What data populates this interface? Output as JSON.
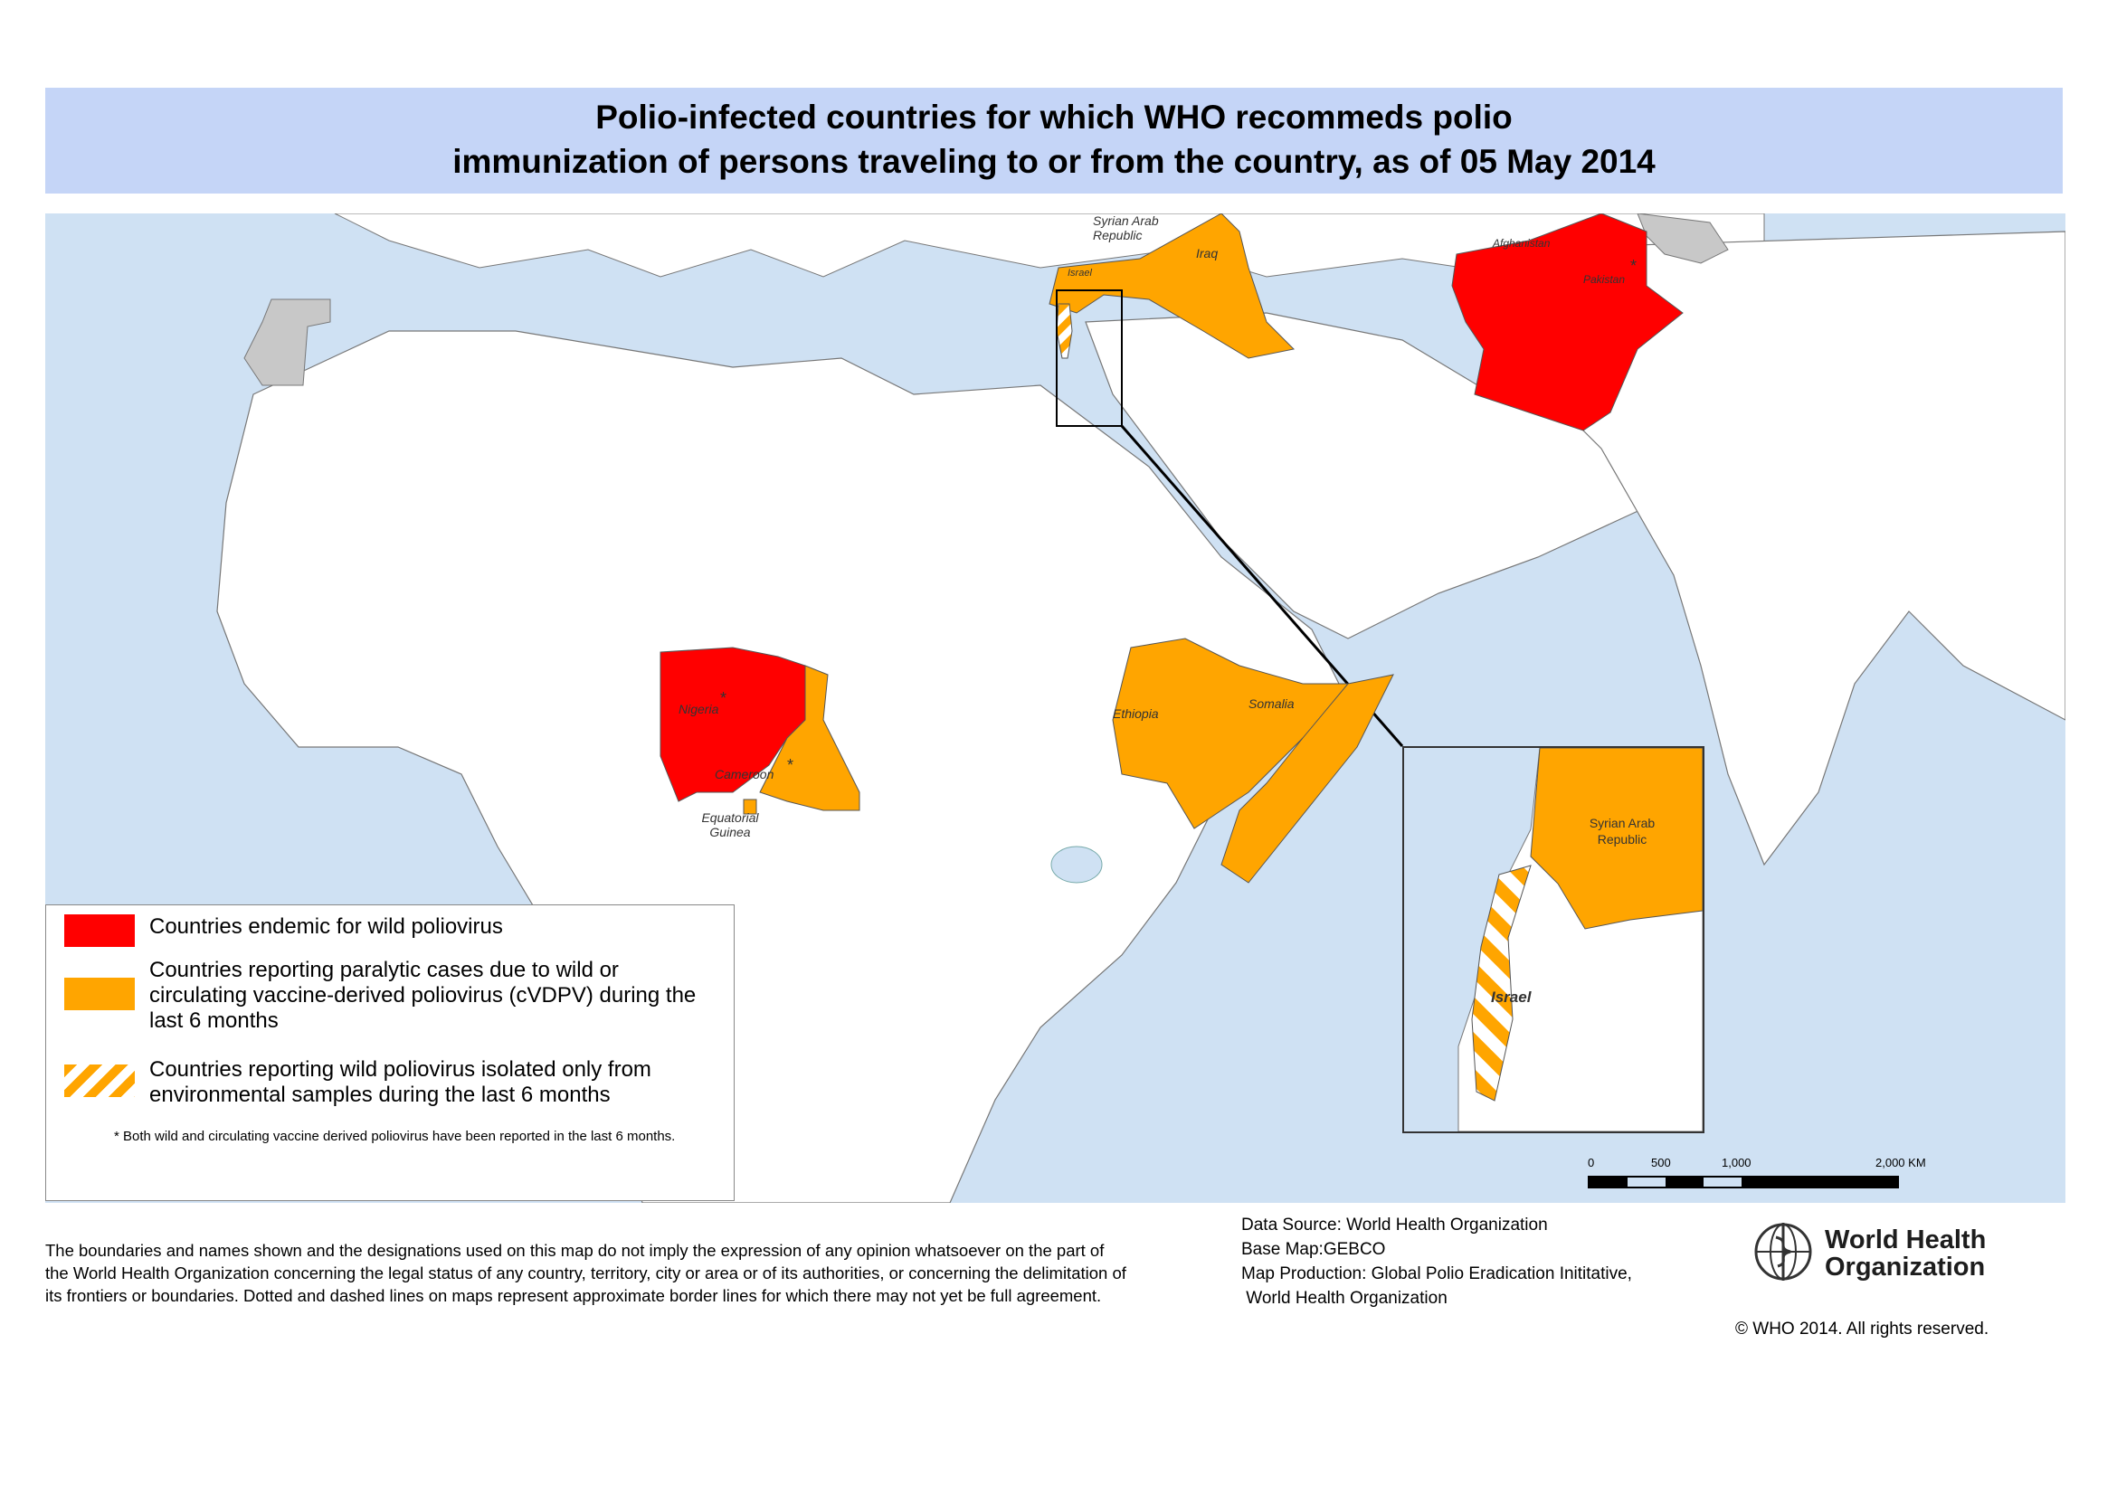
{
  "title": {
    "line1": "Polio-infected countries for which WHO recommeds polio",
    "line2": "immunization of persons traveling to or from the country, as of 05 May 2014"
  },
  "colors": {
    "endemic": "#ff0000",
    "cvdpv": "#ffa500",
    "ocean": "#cfe1f3",
    "land": "#ffffff",
    "disputed": "#c8c8c8"
  },
  "map": {
    "labels": {
      "syria": "Syrian Arab Republic",
      "iraq": "Iraq",
      "israel": "Israel",
      "afghanistan": "Afghanistan",
      "pakistan": "Pakistan",
      "nigeria": "Nigeria",
      "cameroon": "Cameroon",
      "equatorial_guinea": "Equatorial Guinea",
      "ethiopia": "Ethiopia",
      "somalia": "Somalia"
    },
    "star": "*",
    "inset": {
      "syria": "Syrian Arab Republic",
      "israel": "Israel"
    }
  },
  "legend": {
    "items": [
      {
        "category": "endemic",
        "label": "Countries endemic for wild poliovirus"
      },
      {
        "category": "cvdpv",
        "label": "Countries reporting paralytic cases due to wild or circulating vaccine-derived poliovirus (cVDPV) during the last 6 months"
      },
      {
        "category": "environmental",
        "label": "Countries reporting wild poliovirus isolated only from environmental samples during the last 6 months"
      }
    ],
    "note": "* Both wild and circulating vaccine derived poliovirus have been reported in the last 6 months."
  },
  "scale": {
    "ticks": [
      "0",
      "500",
      "1,000",
      "2,000 KM"
    ]
  },
  "footer": {
    "disclaimer": "The boundaries and names shown and the designations used on this map do not imply the expression of any opinion whatsoever on the part of the World Health Organization concerning the legal status of any country, territory, city or area or of its authorities, or concerning the delimitation of its frontiers or boundaries. Dotted and dashed lines on maps represent approximate border lines for which there may not yet be full agreement.",
    "source_lines": [
      "Data Source: World Health Organization",
      "Base Map:GEBCO",
      "Map Production: Global Polio Eradication Inititative,",
      " World Health Organization"
    ],
    "who_name": "World Health Organization",
    "copyright": "© WHO 2014. All rights reserved."
  }
}
